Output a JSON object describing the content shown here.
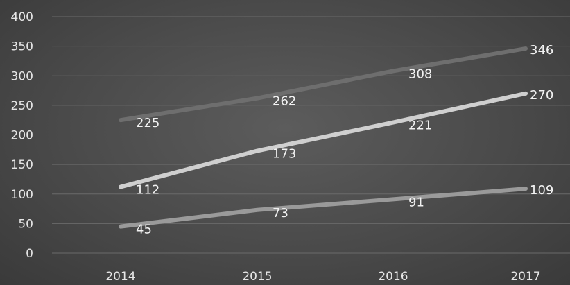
{
  "chart_data": {
    "type": "line",
    "categories": [
      "2014",
      "2015",
      "2016",
      "2017"
    ],
    "series": [
      {
        "values": [
          225,
          262,
          308,
          346
        ],
        "color": "#6e6e6e"
      },
      {
        "values": [
          112,
          173,
          221,
          270
        ],
        "color": "#cfcfcf"
      },
      {
        "values": [
          45,
          73,
          91,
          109
        ],
        "color": "#9a9a9a"
      }
    ],
    "title": "",
    "xlabel": "",
    "ylabel": "",
    "ylim": [
      0,
      400
    ],
    "yticks": [
      "0",
      "50",
      "100",
      "150",
      "200",
      "250",
      "300",
      "350",
      "400"
    ],
    "grid": true,
    "legend": "none",
    "data_labels": true
  }
}
